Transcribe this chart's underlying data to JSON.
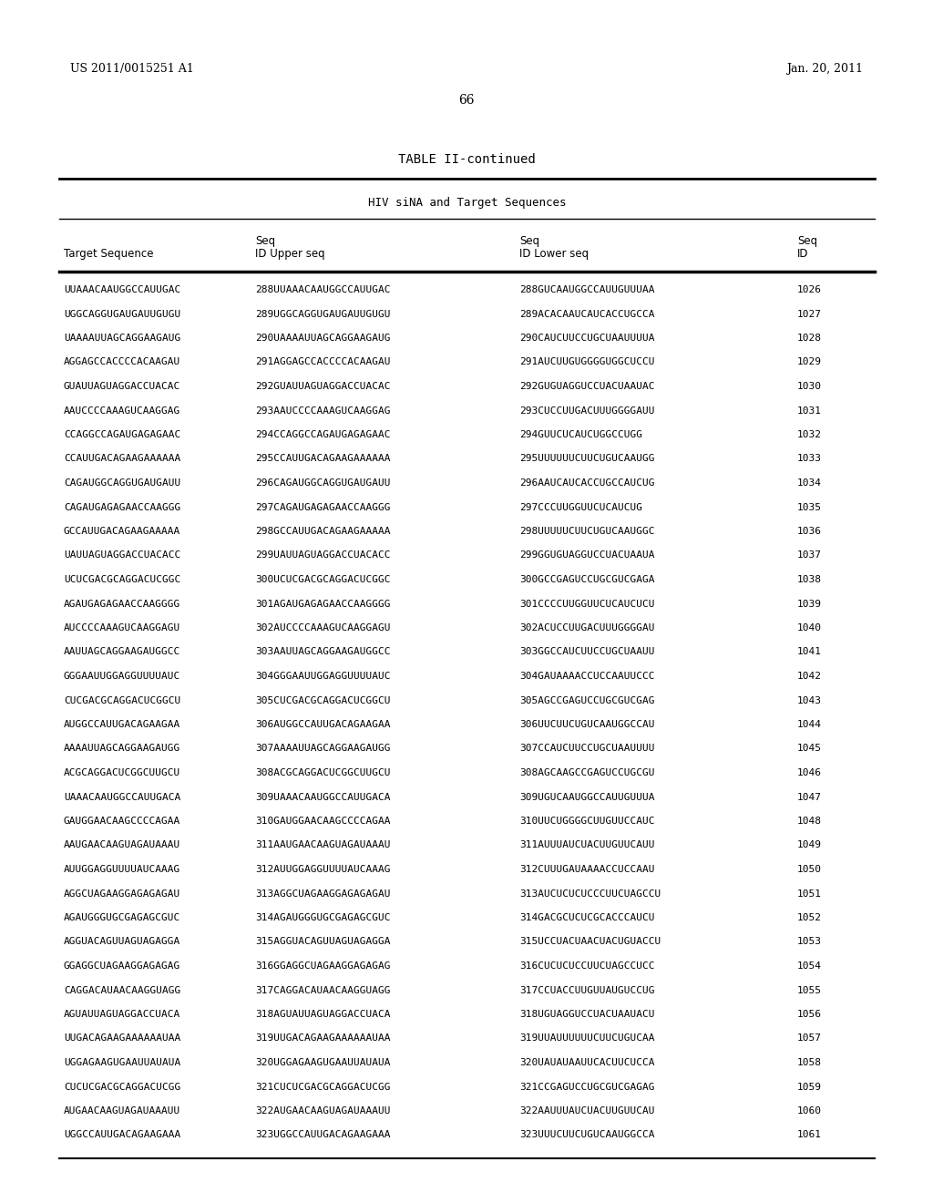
{
  "header_left": "US 2011/0015251 A1",
  "header_right": "Jan. 20, 2011",
  "page_number": "66",
  "table_title": "TABLE II-continued",
  "table_subtitle": "HIV siNA and Target Sequences",
  "rows": [
    [
      "UUAAACAAUGGCCAUUGAC",
      "288",
      "UUAAACAAUGGCCAUUGAC",
      "288",
      "GUCAAUGGCCAUUGUUUAA",
      "1026"
    ],
    [
      "UGGCAGGUGAUGAUUGUGU",
      "289",
      "UGGCAGGUGAUGAUUGUGU",
      "289",
      "ACACAAUCAUCACCUGCCA",
      "1027"
    ],
    [
      "UAAAAUUAGCAGGAAGAUG",
      "290",
      "UAAAAUUAGCAGGAAGAUG",
      "290",
      "CAUCUUCCUGCUAAUUUUA",
      "1028"
    ],
    [
      "AGGAGCCACCCCACAAGAU",
      "291",
      "AGGAGCCACCCCACAAGAU",
      "291",
      "AUCUUGUGGGGUGGCUCCU",
      "1029"
    ],
    [
      "GUAUUAGUAGGACCUACAC",
      "292",
      "GUAUUAGUAGGACCUACAC",
      "292",
      "GUGUAGGUCCUACUAAUAC",
      "1030"
    ],
    [
      "AAUCCCCAAAGUCAAGGAG",
      "293",
      "AAUCCCCAAAGUCAAGGAG",
      "293",
      "CUCCUUGACUUUGGGGAUU",
      "1031"
    ],
    [
      "CCAGGCCAGAUGAGAGAAC",
      "294",
      "CCAGGCCAGAUGAGAGAAC",
      "294",
      "GUUCUCAUCUGGCCUGG",
      "1032"
    ],
    [
      "CCAUUGACAGAAGAAAAAA",
      "295",
      "CCAUUGACAGAAGAAAAAA",
      "295",
      "UUUUUUCUUCUGUCAAUGG",
      "1033"
    ],
    [
      "CAGAUGGCAGGUGAUGAUU",
      "296",
      "CAGAUGGCAGGUGAUGAUU",
      "296",
      "AAUCAUCACCUGCCAUCUG",
      "1034"
    ],
    [
      "CAGAUGAGAGAACCAAGGG",
      "297",
      "CAGAUGAGAGAACCAAGGG",
      "297",
      "CCCUUGGUUCUCAUCUG",
      "1035"
    ],
    [
      "GCCAUUGACAGAAGAAAAA",
      "298",
      "GCCAUUGACAGAAGAAAAA",
      "298",
      "UUUUUCUUCUGUCAAUGGC",
      "1036"
    ],
    [
      "UAUUAGUAGGACCUACACC",
      "299",
      "UAUUAGUAGGACCUACACC",
      "299",
      "GGUGUAGGUCCUACUAAUA",
      "1037"
    ],
    [
      "UCUCGACGCAGGACUCGGC",
      "300",
      "UCUCGACGCAGGACUCGGC",
      "300",
      "GCCGAGUCCUGCGUCGAGA",
      "1038"
    ],
    [
      "AGAUGAGAGAACCAAGGGG",
      "301",
      "AGAUGAGAGAACCAAGGGG",
      "301",
      "CCCCUUGGUUCUCAUCUCU",
      "1039"
    ],
    [
      "AUCCCCAAAGUCAAGGAGU",
      "302",
      "AUCCCCAAAGUCAAGGAGU",
      "302",
      "ACUCCUUGACUUUGGGGAU",
      "1040"
    ],
    [
      "AAUUAGCAGGAAGAUGGCC",
      "303",
      "AAUUAGCAGGAAGAUGGCC",
      "303",
      "GGCCAUCUUCCUGCUAAUU",
      "1041"
    ],
    [
      "GGGAAUUGGAGGUUUUAUC",
      "304",
      "GGGAAUUGGAGGUUUUAUC",
      "304",
      "GAUAAAACCUCCAAUUCCC",
      "1042"
    ],
    [
      "CUCGACGCAGGACUCGGCU",
      "305",
      "CUCGACGCAGGACUCGGCU",
      "305",
      "AGCCGAGUCCUGCGUCGAG",
      "1043"
    ],
    [
      "AUGGCCAUUGACAGAAGAA",
      "306",
      "AUGGCCAUUGACAGAAGAA",
      "306",
      "UUCUUCUGUCAAUGGCCAU",
      "1044"
    ],
    [
      "AAAAUUAGCAGGAAGAUGG",
      "307",
      "AAAAUUAGCAGGAAGAUGG",
      "307",
      "CCAUCUUCCUGCUAAUUUU",
      "1045"
    ],
    [
      "ACGCAGGACUCGGCUUGCU",
      "308",
      "ACGCAGGACUCGGCUUGCU",
      "308",
      "AGCAAGCCGAGUCCUGCGU",
      "1046"
    ],
    [
      "UAAACAAUGGCCAUUGACA",
      "309",
      "UAAACAAUGGCCAUUGACA",
      "309",
      "UGUCAAUGGCCAUUGUUUA",
      "1047"
    ],
    [
      "GAUGGAACAAGCCCCAGAA",
      "310",
      "GAUGGAACAAGCCCCAGAA",
      "310",
      "UUCUGGGGCUUGUUCCAUC",
      "1048"
    ],
    [
      "AAUGAACAAGUAGAUAAAU",
      "311",
      "AAUGAACAAGUAGAUAAAU",
      "311",
      "AUUUAUCUACUUGUUCAUU",
      "1049"
    ],
    [
      "AUUGGAGGUUUUAUCAAAG",
      "312",
      "AUUGGAGGUUUUAUCAAAG",
      "312",
      "CUUUGAUAAAACCUCCAAU",
      "1050"
    ],
    [
      "AGGCUAGAAGGAGAGAGAU",
      "313",
      "AGGCUAGAAGGAGAGAGAU",
      "313",
      "AUCUCUCUCCCUUCUAGCCU",
      "1051"
    ],
    [
      "AGAUGGGUGCGAGAGCGUC",
      "314",
      "AGAUGGGUGCGAGAGCGUC",
      "314",
      "GACGCUCUCGCACCCAUCU",
      "1052"
    ],
    [
      "AGGUACAGUUAGUAGAGGA",
      "315",
      "AGGUACAGUUAGUAGAGGA",
      "315",
      "UCCUACUAACUACUGUACCU",
      "1053"
    ],
    [
      "GGAGGCUAGAAGGAGAGAG",
      "316",
      "GGAGGCUAGAAGGAGAGAG",
      "316",
      "CUCUCUCCUUCUAGCCUCC",
      "1054"
    ],
    [
      "CAGGACAUAACAAGGUAGG",
      "317",
      "CAGGACAUAACAAGGUAGG",
      "317",
      "CCUACCUUGUUAUGUCCUG",
      "1055"
    ],
    [
      "AGUAUUAGUAGGACCUACA",
      "318",
      "AGUAUUAGUAGGACCUACA",
      "318",
      "UGUAGGUCCUACUAAUACU",
      "1056"
    ],
    [
      "UUGACAGAAGAAAAAAUAA",
      "319",
      "UUGACAGAAGAAAAAAUAA",
      "319",
      "UUAUUUUUUCUUCUGUCAA",
      "1057"
    ],
    [
      "UGGAGAAGUGAAUUAUAUA",
      "320",
      "UGGAGAAGUGAAUUAUAUA",
      "320",
      "UAUAUAAUUCACUUCUCCA",
      "1058"
    ],
    [
      "CUCUCGACGCAGGACUCGG",
      "321",
      "CUCUCGACGCAGGACUCGG",
      "321",
      "CCGAGUCCUGCGUCGAGAG",
      "1059"
    ],
    [
      "AUGAACAAGUAGAUAAAUU",
      "322",
      "AUGAACAAGUAGAUAAAUU",
      "322",
      "AAUUUAUCUACUUGUUCAU",
      "1060"
    ],
    [
      "UGGCCAUUGACAGAAGAAA",
      "323",
      "UGGCCAUUGACAGAAGAAA",
      "323",
      "UUUCUUCUGUCAAUGGCCA",
      "1061"
    ]
  ],
  "bg_color": "#ffffff",
  "text_color": "#000000"
}
